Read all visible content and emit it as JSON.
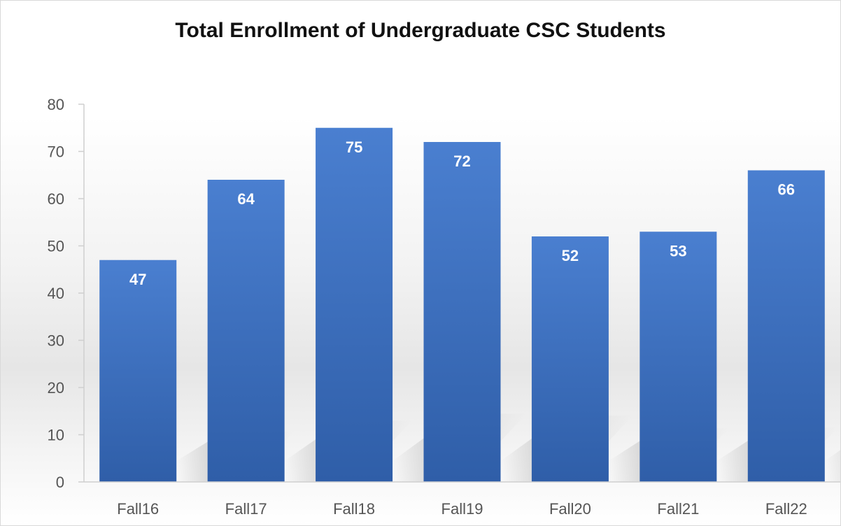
{
  "chart_data": {
    "type": "bar",
    "title": "Total Enrollment of Undergraduate CSC Students",
    "categories": [
      "Fall16",
      "Fall17",
      "Fall18",
      "Fall19",
      "Fall20",
      "Fall21",
      "Fall22"
    ],
    "values": [
      47,
      64,
      75,
      72,
      52,
      53,
      66
    ],
    "ylim": [
      0,
      80
    ],
    "yticks": [
      0,
      10,
      20,
      30,
      40,
      50,
      60,
      70,
      80
    ],
    "xlabel": "",
    "ylabel": "",
    "grid": false,
    "data_labels": true,
    "colors": {
      "bar_top": "#4a7fd0",
      "bar_bottom": "#2f5ea8",
      "axis": "#cfcfcf",
      "shadow": "#c9c9c9"
    }
  }
}
